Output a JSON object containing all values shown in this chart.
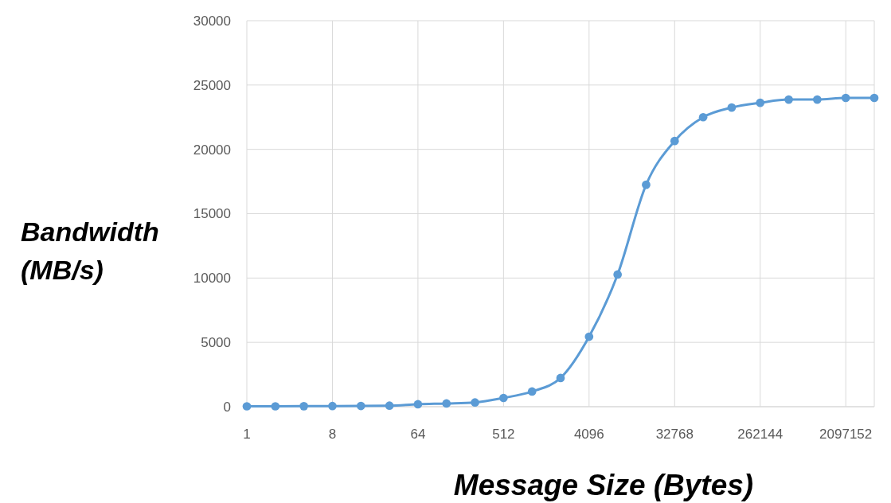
{
  "chart_data": {
    "type": "line",
    "xlabel": "Message Size (Bytes)",
    "ylabel": "Bandwidth (MB/s)",
    "log": "x",
    "x": [
      1,
      2,
      4,
      8,
      16,
      32,
      64,
      128,
      256,
      512,
      1024,
      2048,
      4096,
      8192,
      16384,
      32768,
      65536,
      131072,
      262144,
      524288,
      1048576,
      2097152,
      4194304
    ],
    "series": [
      {
        "color": "#5b9bd5",
        "values": [
          30,
          30,
          40,
          50,
          60,
          80,
          190,
          250,
          330,
          680,
          1180,
          2230,
          5440,
          10270,
          17250,
          20650,
          22500,
          23250,
          23620,
          23870,
          23870,
          24000,
          24000
        ]
      }
    ],
    "xlim": [
      1,
      4194304
    ],
    "xticks": [
      1,
      8,
      64,
      512,
      4096,
      32768,
      262144,
      2097152
    ],
    "ylim": [
      0,
      30000
    ],
    "yticks": [
      0,
      5000,
      10000,
      15000,
      20000,
      25000,
      30000
    ],
    "grid": true,
    "marker": "circle",
    "line_style": "solid"
  }
}
